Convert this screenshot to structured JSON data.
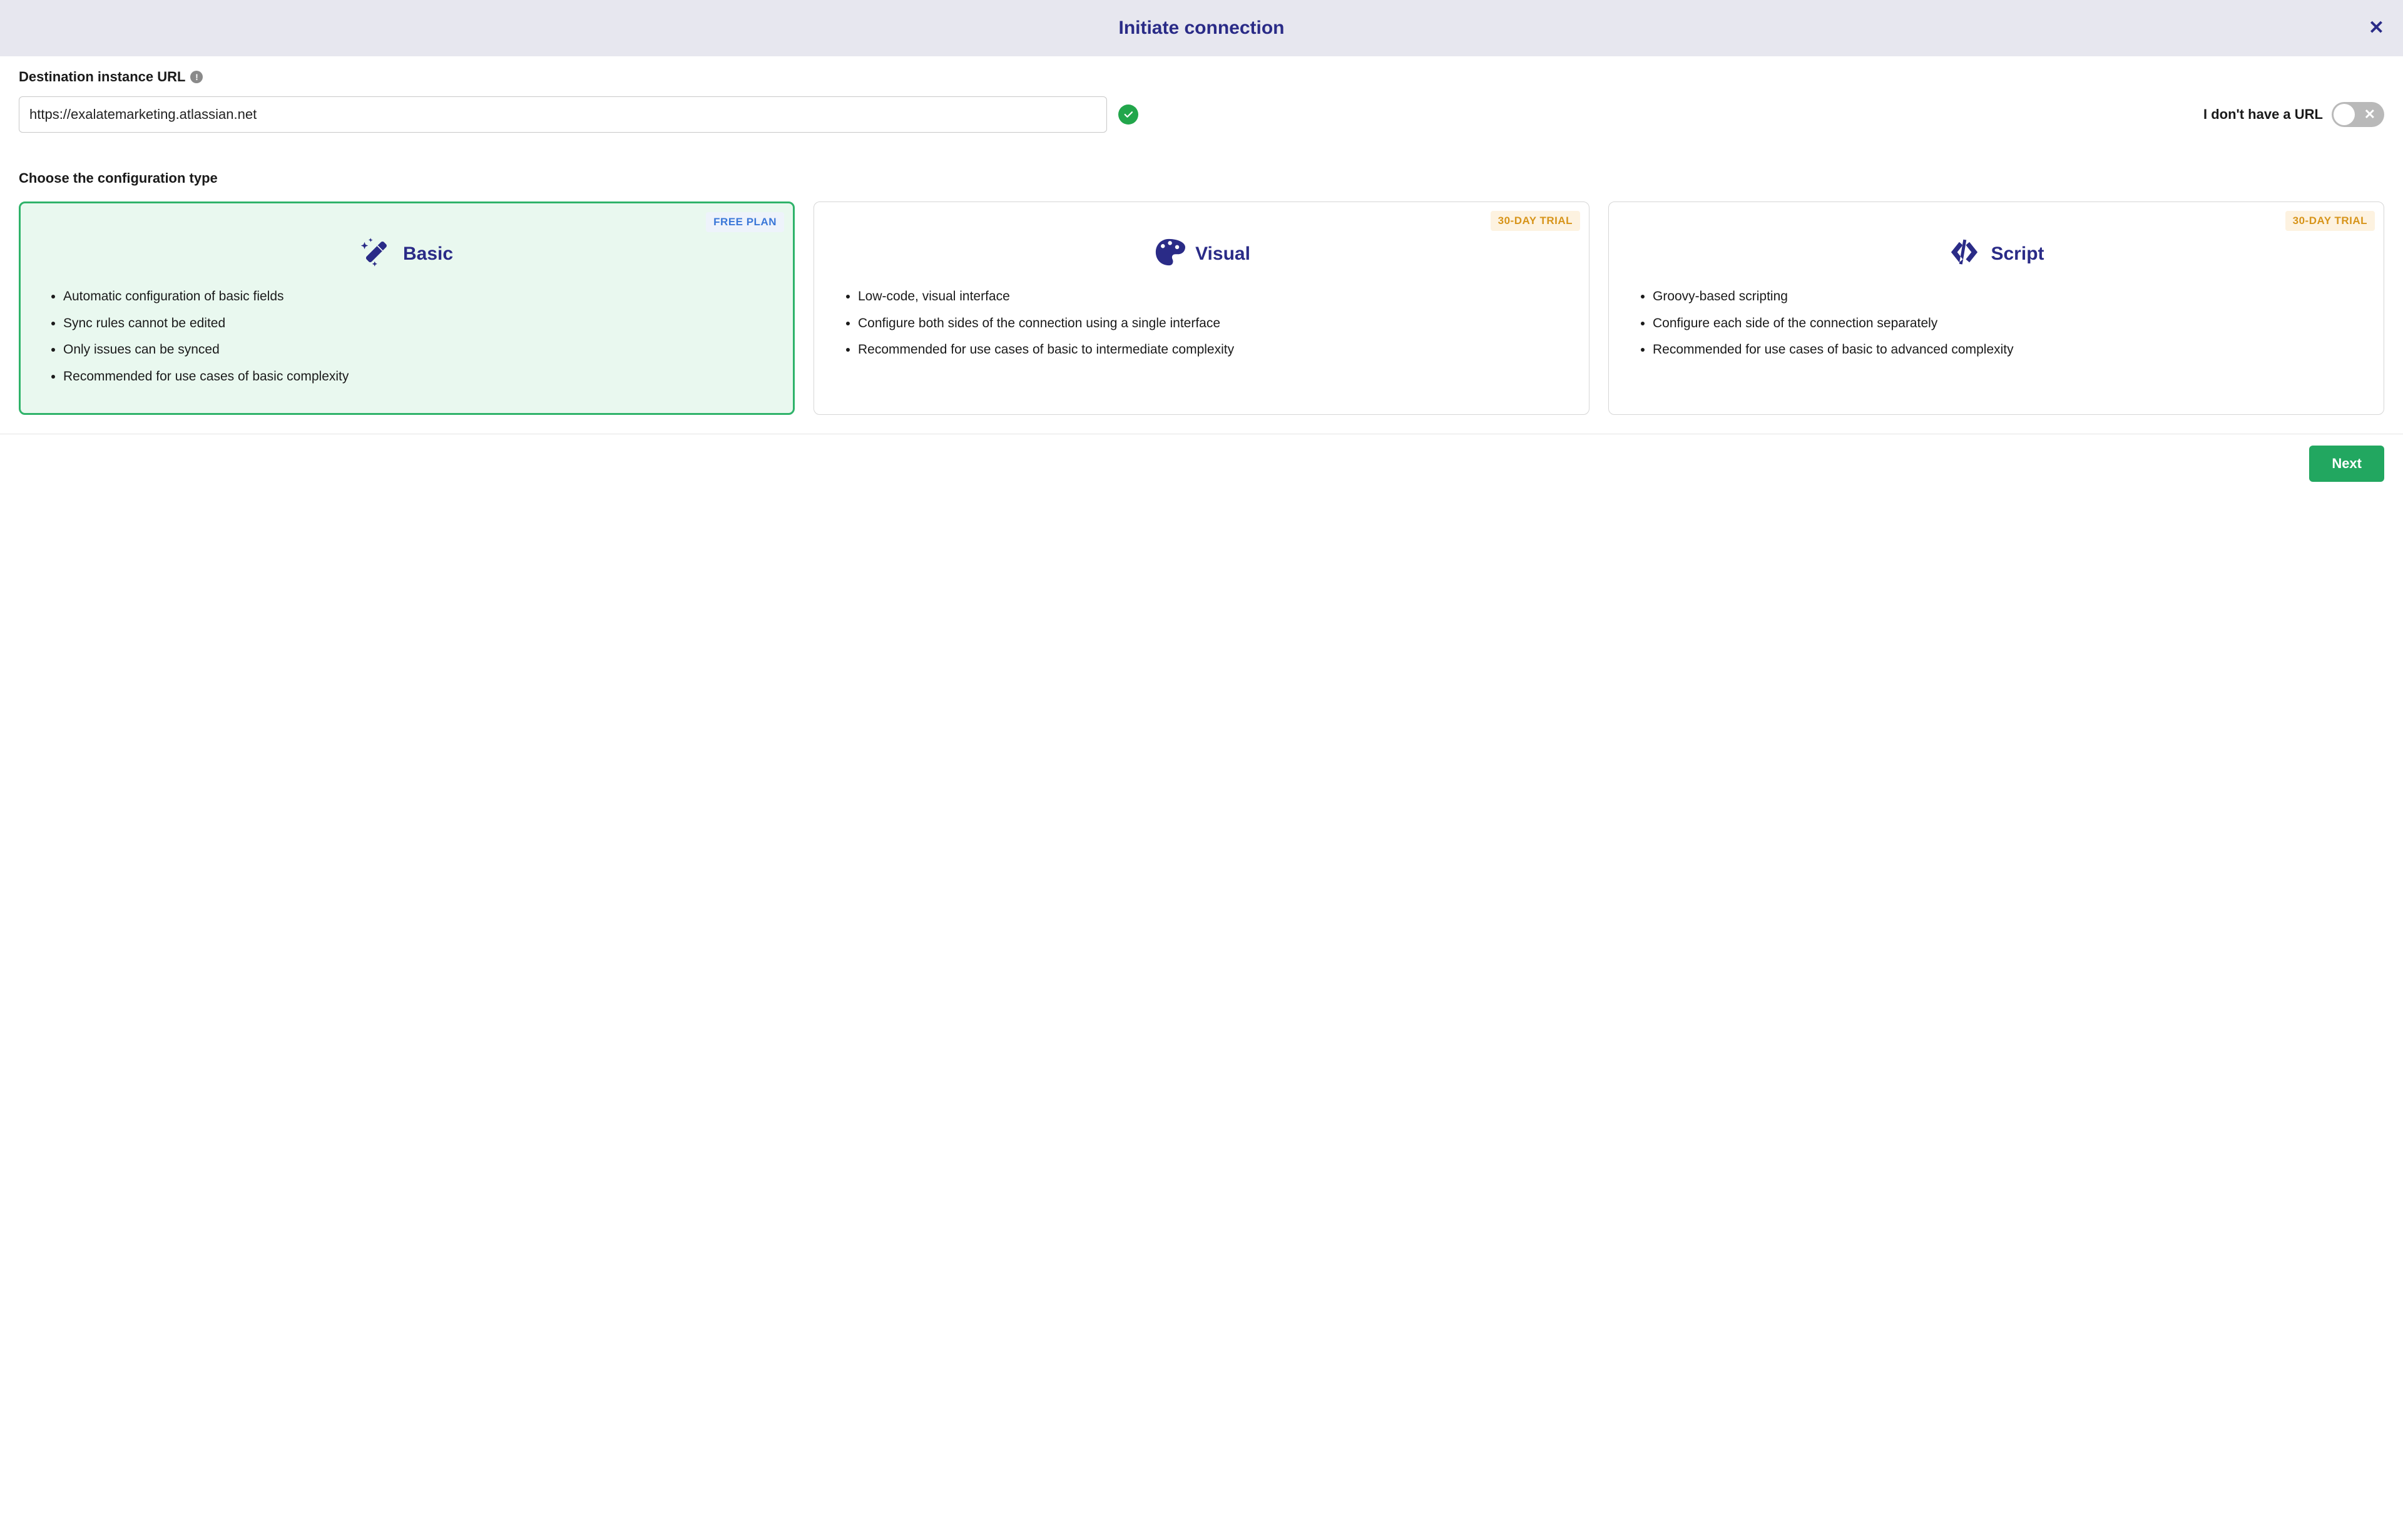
{
  "colors": {
    "header_bg": "#e7e7ef",
    "primary_text": "#2a2b87",
    "selected_border": "#2fb36a",
    "selected_bg": "#e9f8ef",
    "success": "#22a64b",
    "next_bg": "#22a760",
    "badge_free_bg": "#eef3fb",
    "badge_free_fg": "#3a77d8",
    "badge_trial_bg": "#fdf2e0",
    "badge_trial_fg": "#d7941a",
    "toggle_bg": "#b9b9b9"
  },
  "header": {
    "title": "Initiate connection",
    "close_label": "✕"
  },
  "url_section": {
    "label": "Destination instance URL",
    "info_glyph": "!",
    "input_value": "https://exalatemarketing.atlassian.net",
    "validated": true,
    "no_url_label": "I don't have a URL",
    "no_url_toggle_on": false,
    "toggle_x_glyph": "✕"
  },
  "config_section": {
    "label": "Choose the configuration type"
  },
  "cards": [
    {
      "id": "basic",
      "title": "Basic",
      "icon": "wand",
      "badge_text": "FREE PLAN",
      "badge_class": "badge-free",
      "selected": true,
      "bullets": [
        "Automatic configuration of basic fields",
        "Sync rules cannot be edited",
        "Only issues can be synced",
        "Recommended for use cases of basic complexity"
      ]
    },
    {
      "id": "visual",
      "title": "Visual",
      "icon": "palette",
      "badge_text": "30-DAY TRIAL",
      "badge_class": "badge-trial",
      "selected": false,
      "bullets": [
        "Low-code, visual interface",
        "Configure both sides of the connection using a single interface",
        "Recommended for use cases of basic to intermediate complexity"
      ]
    },
    {
      "id": "script",
      "title": "Script",
      "icon": "code",
      "badge_text": "30-DAY TRIAL",
      "badge_class": "badge-trial",
      "selected": false,
      "bullets": [
        "Groovy-based scripting",
        "Configure each side of the connection separately",
        "Recommended for use cases of basic to advanced complexity"
      ]
    }
  ],
  "footer": {
    "next_label": "Next"
  }
}
